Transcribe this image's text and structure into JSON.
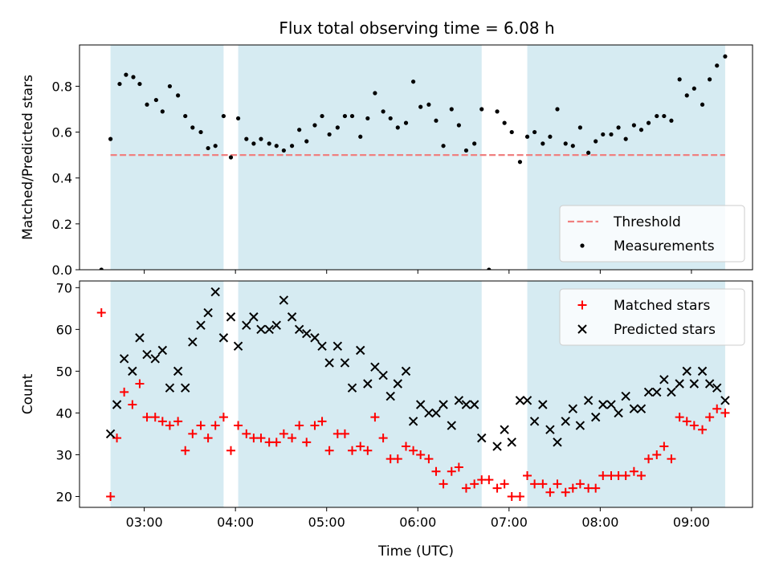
{
  "title": "Flux total observing time = 6.08 h",
  "colors": {
    "band": "#add8e6",
    "threshold": "#f08080",
    "matched": "#ff0000",
    "predicted": "#000000",
    "measurement": "#000000"
  },
  "chart_data": [
    {
      "type": "scatter",
      "title": "Flux total observing time = 6.08 h",
      "xlabel": "",
      "ylabel": "Matched/Predicted stars",
      "xlim": [
        2.29,
        9.67
      ],
      "ylim": [
        0,
        0.98
      ],
      "yticks": [
        0.0,
        0.2,
        0.4,
        0.6,
        0.8
      ],
      "ytick_labels": [
        "0.0",
        "0.2",
        "0.4",
        "0.6",
        "0.8"
      ],
      "grid": false,
      "legend": "lower-right",
      "shaded_intervals": [
        [
          2.63,
          3.87
        ],
        [
          4.03,
          6.7
        ],
        [
          7.2,
          9.37
        ]
      ],
      "threshold": {
        "name": "Threshold",
        "y": 0.5,
        "x_range": [
          2.63,
          9.37
        ],
        "style": "dashed"
      },
      "series": [
        {
          "name": "Measurements",
          "points": [
            [
              2.53,
              0.0
            ],
            [
              2.63,
              0.57
            ],
            [
              2.73,
              0.81
            ],
            [
              2.8,
              0.85
            ],
            [
              2.88,
              0.84
            ],
            [
              2.95,
              0.81
            ],
            [
              3.03,
              0.72
            ],
            [
              3.13,
              0.74
            ],
            [
              3.2,
              0.69
            ],
            [
              3.28,
              0.8
            ],
            [
              3.37,
              0.76
            ],
            [
              3.45,
              0.67
            ],
            [
              3.53,
              0.62
            ],
            [
              3.62,
              0.6
            ],
            [
              3.7,
              0.53
            ],
            [
              3.78,
              0.54
            ],
            [
              3.87,
              0.67
            ],
            [
              3.95,
              0.49
            ],
            [
              4.03,
              0.66
            ],
            [
              4.12,
              0.57
            ],
            [
              4.2,
              0.55
            ],
            [
              4.28,
              0.57
            ],
            [
              4.37,
              0.55
            ],
            [
              4.45,
              0.54
            ],
            [
              4.53,
              0.52
            ],
            [
              4.62,
              0.54
            ],
            [
              4.7,
              0.61
            ],
            [
              4.78,
              0.56
            ],
            [
              4.87,
              0.63
            ],
            [
              4.95,
              0.67
            ],
            [
              5.03,
              0.59
            ],
            [
              5.12,
              0.62
            ],
            [
              5.2,
              0.67
            ],
            [
              5.28,
              0.67
            ],
            [
              5.37,
              0.58
            ],
            [
              5.45,
              0.66
            ],
            [
              5.53,
              0.77
            ],
            [
              5.62,
              0.69
            ],
            [
              5.7,
              0.66
            ],
            [
              5.78,
              0.62
            ],
            [
              5.87,
              0.64
            ],
            [
              5.95,
              0.82
            ],
            [
              6.03,
              0.71
            ],
            [
              6.12,
              0.72
            ],
            [
              6.2,
              0.65
            ],
            [
              6.28,
              0.54
            ],
            [
              6.37,
              0.7
            ],
            [
              6.45,
              0.63
            ],
            [
              6.53,
              0.52
            ],
            [
              6.62,
              0.55
            ],
            [
              6.7,
              0.7
            ],
            [
              6.78,
              0.0
            ],
            [
              6.87,
              0.69
            ],
            [
              6.95,
              0.64
            ],
            [
              7.03,
              0.6
            ],
            [
              7.12,
              0.47
            ],
            [
              7.2,
              0.58
            ],
            [
              7.28,
              0.6
            ],
            [
              7.37,
              0.55
            ],
            [
              7.45,
              0.58
            ],
            [
              7.53,
              0.7
            ],
            [
              7.62,
              0.55
            ],
            [
              7.7,
              0.54
            ],
            [
              7.78,
              0.62
            ],
            [
              7.87,
              0.51
            ],
            [
              7.95,
              0.56
            ],
            [
              8.03,
              0.59
            ],
            [
              8.12,
              0.59
            ],
            [
              8.2,
              0.62
            ],
            [
              8.28,
              0.57
            ],
            [
              8.37,
              0.63
            ],
            [
              8.45,
              0.61
            ],
            [
              8.53,
              0.64
            ],
            [
              8.62,
              0.67
            ],
            [
              8.7,
              0.67
            ],
            [
              8.78,
              0.65
            ],
            [
              8.87,
              0.83
            ],
            [
              8.95,
              0.76
            ],
            [
              9.03,
              0.79
            ],
            [
              9.12,
              0.72
            ],
            [
              9.2,
              0.83
            ],
            [
              9.28,
              0.89
            ],
            [
              9.37,
              0.93
            ]
          ]
        }
      ]
    },
    {
      "type": "scatter",
      "title": "",
      "xlabel": "Time (UTC)",
      "ylabel": "Count",
      "xlim": [
        2.29,
        9.67
      ],
      "ylim": [
        17.4,
        71.6
      ],
      "xticks": [
        3,
        4,
        5,
        6,
        7,
        8,
        9
      ],
      "xtick_labels": [
        "03:00",
        "04:00",
        "05:00",
        "06:00",
        "07:00",
        "08:00",
        "09:00"
      ],
      "yticks": [
        20,
        30,
        40,
        50,
        60,
        70
      ],
      "ytick_labels": [
        "20",
        "30",
        "40",
        "50",
        "60",
        "70"
      ],
      "grid": false,
      "legend": "top-right",
      "shaded_intervals": [
        [
          2.63,
          3.87
        ],
        [
          4.03,
          6.7
        ],
        [
          7.2,
          9.37
        ]
      ],
      "series": [
        {
          "name": "Matched stars",
          "marker": "plus",
          "points": [
            [
              2.53,
              64
            ],
            [
              2.63,
              20
            ],
            [
              2.7,
              34
            ],
            [
              2.78,
              45
            ],
            [
              2.87,
              42
            ],
            [
              2.95,
              47
            ],
            [
              3.03,
              39
            ],
            [
              3.12,
              39
            ],
            [
              3.2,
              38
            ],
            [
              3.28,
              37
            ],
            [
              3.37,
              38
            ],
            [
              3.45,
              31
            ],
            [
              3.53,
              35
            ],
            [
              3.62,
              37
            ],
            [
              3.7,
              34
            ],
            [
              3.78,
              37
            ],
            [
              3.87,
              39
            ],
            [
              3.95,
              31
            ],
            [
              4.03,
              37
            ],
            [
              4.12,
              35
            ],
            [
              4.2,
              34
            ],
            [
              4.28,
              34
            ],
            [
              4.37,
              33
            ],
            [
              4.45,
              33
            ],
            [
              4.53,
              35
            ],
            [
              4.62,
              34
            ],
            [
              4.7,
              37
            ],
            [
              4.78,
              33
            ],
            [
              4.87,
              37
            ],
            [
              4.95,
              38
            ],
            [
              5.03,
              31
            ],
            [
              5.12,
              35
            ],
            [
              5.2,
              35
            ],
            [
              5.28,
              31
            ],
            [
              5.37,
              32
            ],
            [
              5.45,
              31
            ],
            [
              5.53,
              39
            ],
            [
              5.62,
              34
            ],
            [
              5.7,
              29
            ],
            [
              5.78,
              29
            ],
            [
              5.87,
              32
            ],
            [
              5.95,
              31
            ],
            [
              6.03,
              30
            ],
            [
              6.12,
              29
            ],
            [
              6.2,
              26
            ],
            [
              6.28,
              23
            ],
            [
              6.37,
              26
            ],
            [
              6.45,
              27
            ],
            [
              6.53,
              22
            ],
            [
              6.62,
              23
            ],
            [
              6.7,
              24
            ],
            [
              6.78,
              24
            ],
            [
              6.87,
              22
            ],
            [
              6.95,
              23
            ],
            [
              7.03,
              20
            ],
            [
              7.12,
              20
            ],
            [
              7.2,
              25
            ],
            [
              7.28,
              23
            ],
            [
              7.37,
              23
            ],
            [
              7.45,
              21
            ],
            [
              7.53,
              23
            ],
            [
              7.62,
              21
            ],
            [
              7.7,
              22
            ],
            [
              7.78,
              23
            ],
            [
              7.87,
              22
            ],
            [
              7.95,
              22
            ],
            [
              8.03,
              25
            ],
            [
              8.12,
              25
            ],
            [
              8.2,
              25
            ],
            [
              8.28,
              25
            ],
            [
              8.37,
              26
            ],
            [
              8.45,
              25
            ],
            [
              8.53,
              29
            ],
            [
              8.62,
              30
            ],
            [
              8.7,
              32
            ],
            [
              8.78,
              29
            ],
            [
              8.87,
              39
            ],
            [
              8.95,
              38
            ],
            [
              9.03,
              37
            ],
            [
              9.12,
              36
            ],
            [
              9.2,
              39
            ],
            [
              9.28,
              41
            ],
            [
              9.37,
              40
            ]
          ]
        },
        {
          "name": "Predicted stars",
          "marker": "x",
          "points": [
            [
              2.63,
              35
            ],
            [
              2.7,
              42
            ],
            [
              2.78,
              53
            ],
            [
              2.87,
              50
            ],
            [
              2.95,
              58
            ],
            [
              3.03,
              54
            ],
            [
              3.12,
              53
            ],
            [
              3.2,
              55
            ],
            [
              3.28,
              46
            ],
            [
              3.37,
              50
            ],
            [
              3.45,
              46
            ],
            [
              3.53,
              57
            ],
            [
              3.62,
              61
            ],
            [
              3.7,
              64
            ],
            [
              3.78,
              69
            ],
            [
              3.87,
              58
            ],
            [
              3.95,
              63
            ],
            [
              4.03,
              56
            ],
            [
              4.12,
              61
            ],
            [
              4.2,
              63
            ],
            [
              4.28,
              60
            ],
            [
              4.37,
              60
            ],
            [
              4.45,
              61
            ],
            [
              4.53,
              67
            ],
            [
              4.62,
              63
            ],
            [
              4.7,
              60
            ],
            [
              4.78,
              59
            ],
            [
              4.87,
              58
            ],
            [
              4.95,
              56
            ],
            [
              5.03,
              52
            ],
            [
              5.12,
              56
            ],
            [
              5.2,
              52
            ],
            [
              5.28,
              46
            ],
            [
              5.37,
              55
            ],
            [
              5.45,
              47
            ],
            [
              5.53,
              51
            ],
            [
              5.62,
              49
            ],
            [
              5.7,
              44
            ],
            [
              5.78,
              47
            ],
            [
              5.87,
              50
            ],
            [
              5.95,
              38
            ],
            [
              6.03,
              42
            ],
            [
              6.12,
              40
            ],
            [
              6.2,
              40
            ],
            [
              6.28,
              42
            ],
            [
              6.37,
              37
            ],
            [
              6.45,
              43
            ],
            [
              6.53,
              42
            ],
            [
              6.62,
              42
            ],
            [
              6.7,
              34
            ],
            [
              6.87,
              32
            ],
            [
              6.95,
              36
            ],
            [
              7.03,
              33
            ],
            [
              7.12,
              43
            ],
            [
              7.2,
              43
            ],
            [
              7.28,
              38
            ],
            [
              7.37,
              42
            ],
            [
              7.45,
              36
            ],
            [
              7.53,
              33
            ],
            [
              7.62,
              38
            ],
            [
              7.7,
              41
            ],
            [
              7.78,
              37
            ],
            [
              7.87,
              43
            ],
            [
              7.95,
              39
            ],
            [
              8.03,
              42
            ],
            [
              8.12,
              42
            ],
            [
              8.2,
              40
            ],
            [
              8.28,
              44
            ],
            [
              8.37,
              41
            ],
            [
              8.45,
              41
            ],
            [
              8.53,
              45
            ],
            [
              8.62,
              45
            ],
            [
              8.7,
              48
            ],
            [
              8.78,
              45
            ],
            [
              8.87,
              47
            ],
            [
              8.95,
              50
            ],
            [
              9.03,
              47
            ],
            [
              9.12,
              50
            ],
            [
              9.2,
              47
            ],
            [
              9.28,
              46
            ],
            [
              9.37,
              43
            ]
          ]
        }
      ]
    }
  ]
}
